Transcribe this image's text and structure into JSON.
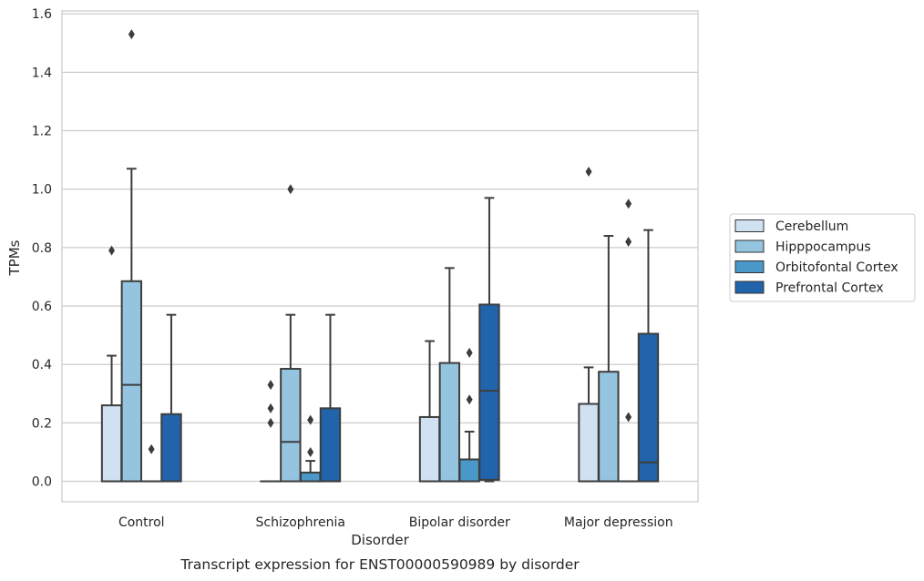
{
  "chart_data": {
    "type": "box",
    "title": "",
    "caption": "Transcript expression for ENST00000590989 by disorder",
    "xlabel": "Disorder",
    "ylabel": "TPMs",
    "ylim": [
      -0.07,
      1.61
    ],
    "yticks": [
      "0.0",
      "0.2",
      "0.4",
      "0.6",
      "0.8",
      "1.0",
      "1.2",
      "1.4",
      "1.6"
    ],
    "grid": "horizontal",
    "legend_position": "right",
    "categories": [
      "Control",
      "Schizophrenia",
      "Bipolar disorder",
      "Major depression"
    ],
    "series": [
      {
        "name": "Cerebellum",
        "color": "#d0e1f2",
        "boxes": [
          {
            "whislo": 0.0,
            "q1": 0.0,
            "med": 0.0,
            "q3": 0.26,
            "whishi": 0.43,
            "fliers": [
              0.79
            ]
          },
          {
            "whislo": 0.0,
            "q1": 0.0,
            "med": 0.0,
            "q3": 0.0,
            "whishi": 0.0,
            "fliers": [
              0.2,
              0.25,
              0.33
            ]
          },
          {
            "whislo": 0.0,
            "q1": 0.0,
            "med": 0.0,
            "q3": 0.22,
            "whishi": 0.48,
            "fliers": []
          },
          {
            "whislo": 0.0,
            "q1": 0.0,
            "med": 0.0,
            "q3": 0.265,
            "whishi": 0.39,
            "fliers": [
              1.06
            ]
          }
        ]
      },
      {
        "name": "Hipppocampus",
        "color": "#94c4df",
        "boxes": [
          {
            "whislo": 0.0,
            "q1": 0.0,
            "med": 0.33,
            "q3": 0.685,
            "whishi": 1.07,
            "fliers": [
              1.53
            ]
          },
          {
            "whislo": 0.0,
            "q1": 0.0,
            "med": 0.135,
            "q3": 0.385,
            "whishi": 0.57,
            "fliers": [
              1.0
            ]
          },
          {
            "whislo": 0.0,
            "q1": 0.0,
            "med": 0.0,
            "q3": 0.405,
            "whishi": 0.73,
            "fliers": []
          },
          {
            "whislo": 0.0,
            "q1": 0.0,
            "med": 0.0,
            "q3": 0.375,
            "whishi": 0.84,
            "fliers": []
          }
        ]
      },
      {
        "name": "Orbitofontal Cortex",
        "color": "#4a98c9",
        "boxes": [
          {
            "whislo": 0.0,
            "q1": 0.0,
            "med": 0.0,
            "q3": 0.0,
            "whishi": 0.0,
            "fliers": [
              0.11
            ]
          },
          {
            "whislo": 0.0,
            "q1": 0.0,
            "med": 0.0,
            "q3": 0.03,
            "whishi": 0.07,
            "fliers": [
              0.1,
              0.21
            ]
          },
          {
            "whislo": 0.0,
            "q1": 0.0,
            "med": 0.0,
            "q3": 0.075,
            "whishi": 0.17,
            "fliers": [
              0.28,
              0.44
            ]
          },
          {
            "whislo": 0.0,
            "q1": 0.0,
            "med": 0.0,
            "q3": 0.0,
            "whishi": 0.0,
            "fliers": [
              0.22,
              0.82,
              0.95
            ]
          }
        ]
      },
      {
        "name": "Prefrontal Cortex",
        "color": "#2164ab",
        "boxes": [
          {
            "whislo": 0.0,
            "q1": 0.0,
            "med": 0.0,
            "q3": 0.23,
            "whishi": 0.57,
            "fliers": []
          },
          {
            "whislo": 0.0,
            "q1": 0.0,
            "med": 0.0,
            "q3": 0.25,
            "whishi": 0.57,
            "fliers": []
          },
          {
            "whislo": 0.0,
            "q1": 0.005,
            "med": 0.31,
            "q3": 0.605,
            "whishi": 0.97,
            "fliers": []
          },
          {
            "whislo": 0.0,
            "q1": 0.0,
            "med": 0.065,
            "q3": 0.505,
            "whishi": 0.86,
            "fliers": []
          }
        ]
      }
    ]
  }
}
